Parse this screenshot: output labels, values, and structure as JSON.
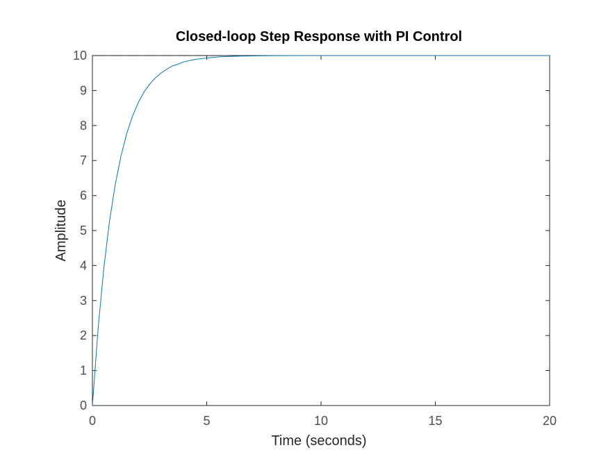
{
  "chart_data": {
    "type": "line",
    "title": "Closed-loop Step Response with PI Control",
    "xlabel": "Time (seconds)",
    "ylabel": "Amplitude",
    "xlim": [
      0,
      20
    ],
    "ylim": [
      0,
      10
    ],
    "xticks": [
      "0",
      "5",
      "10",
      "15",
      "20"
    ],
    "yticks": [
      "0",
      "1",
      "2",
      "3",
      "4",
      "5",
      "6",
      "7",
      "8",
      "9",
      "10"
    ],
    "grid": false,
    "reference_line": {
      "y": 10,
      "style": "dotted"
    },
    "series": [
      {
        "color": "#0072BD",
        "x": [
          0,
          0.25,
          0.5,
          0.75,
          1,
          1.25,
          1.5,
          1.75,
          2,
          2.25,
          2.5,
          2.75,
          3,
          3.25,
          3.5,
          3.75,
          4,
          4.5,
          5,
          5.5,
          6,
          6.5,
          7,
          7.5,
          8,
          9,
          10,
          12,
          14,
          16,
          18,
          20
        ],
        "y": [
          0,
          2.21,
          3.93,
          5.28,
          6.32,
          7.13,
          7.77,
          8.26,
          8.65,
          8.95,
          9.18,
          9.36,
          9.5,
          9.61,
          9.7,
          9.76,
          9.82,
          9.89,
          9.93,
          9.96,
          9.975,
          9.985,
          9.991,
          9.994,
          9.997,
          9.999,
          10.0,
          10.0,
          10.0,
          10.0,
          10.0,
          10.0
        ]
      }
    ]
  },
  "colors": {
    "axes": "#262626",
    "line": "#0072BD",
    "background": "#ffffff"
  }
}
